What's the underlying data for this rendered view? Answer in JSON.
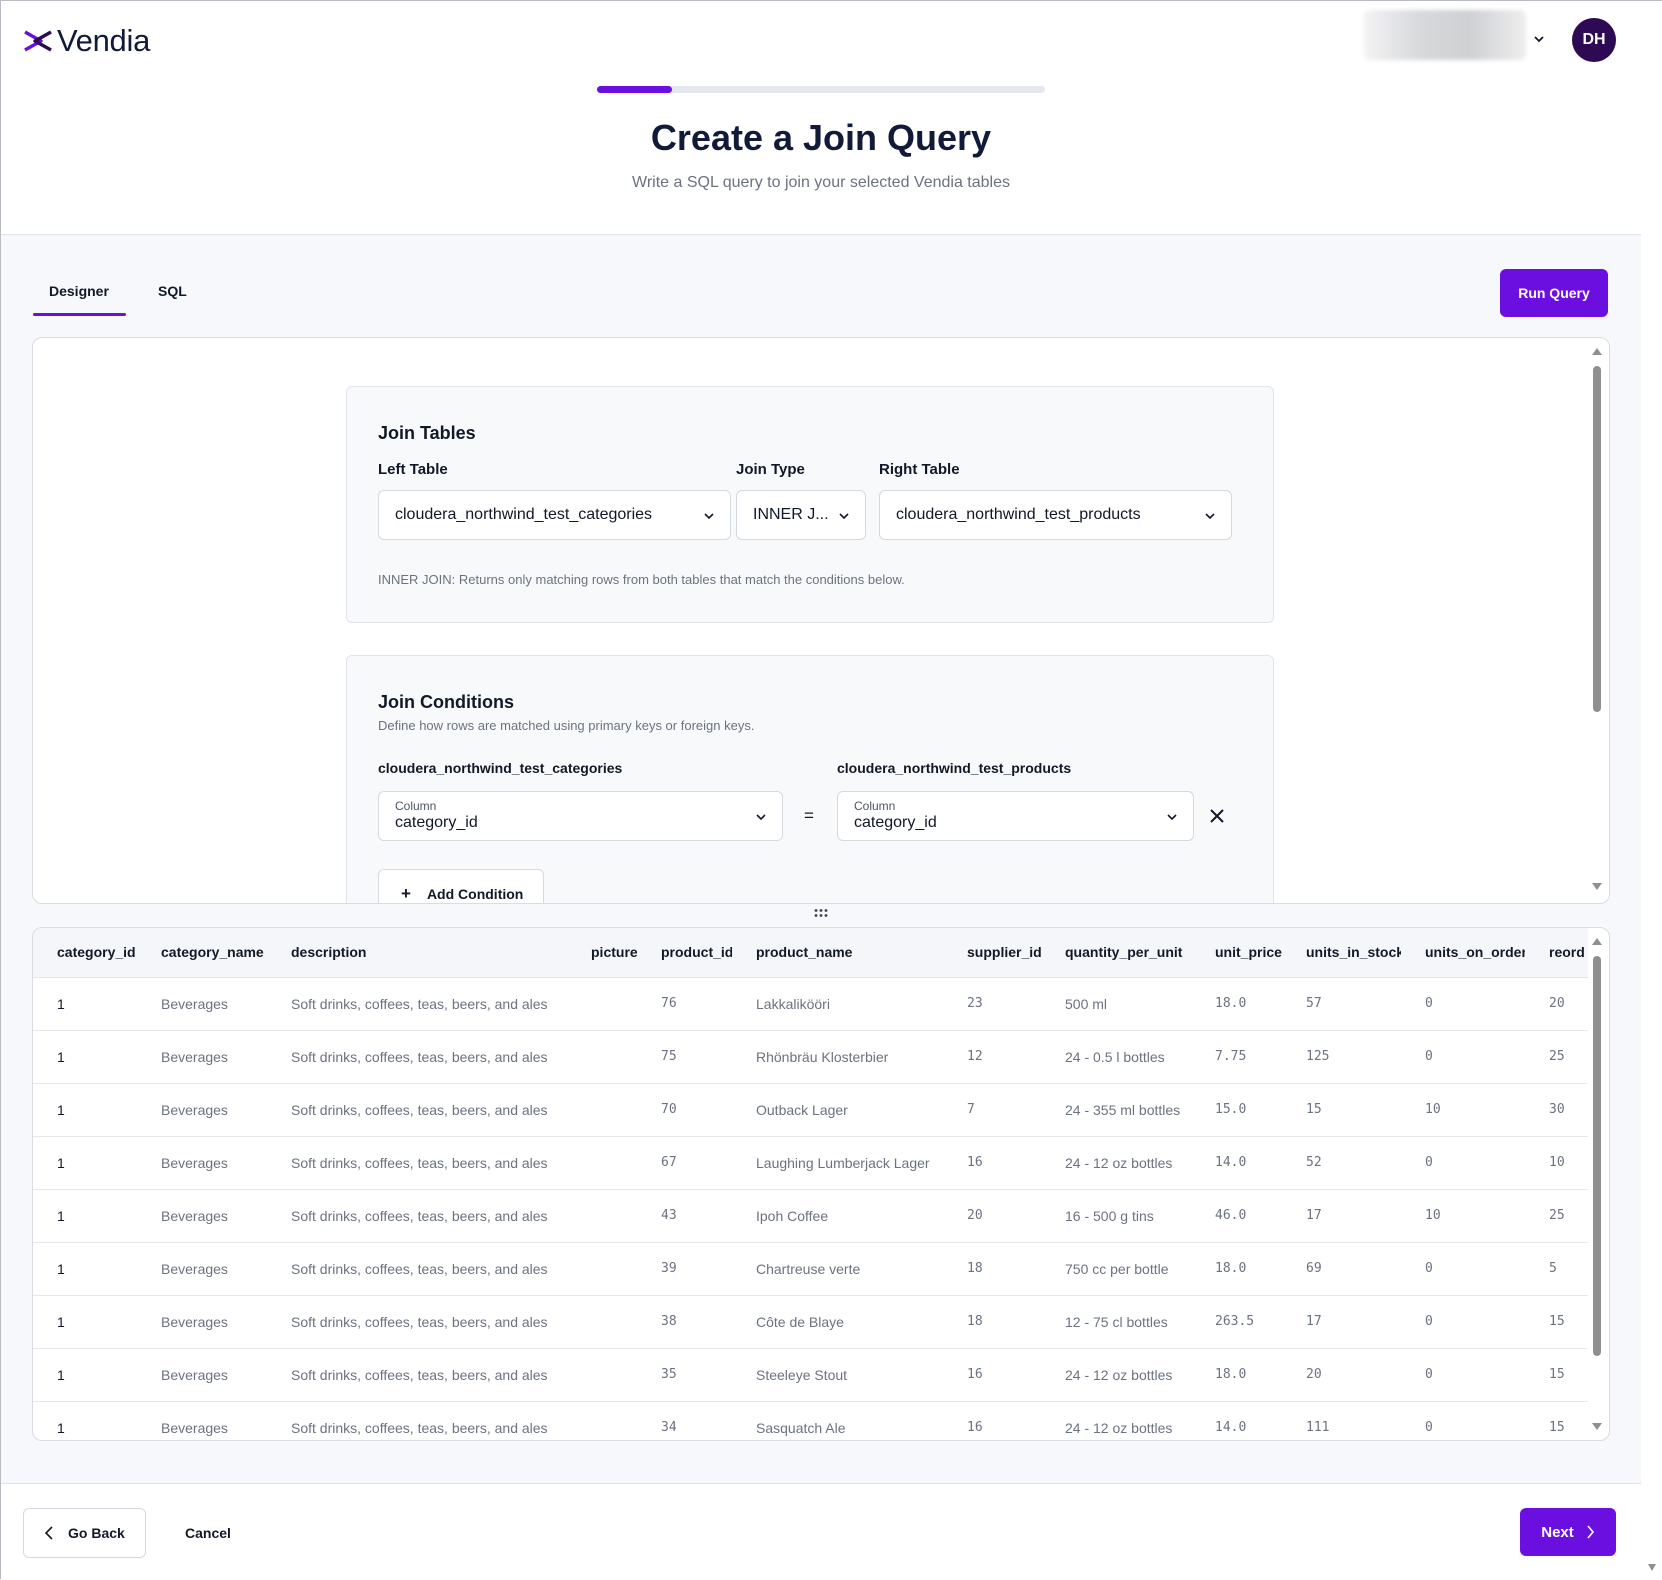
{
  "app": {
    "brand": "Vendia",
    "user_initials": "DH"
  },
  "progress": {
    "fraction": 0.167
  },
  "page": {
    "title": "Create a Join Query",
    "subtitle": "Write a SQL query to join your selected Vendia tables"
  },
  "tabs": [
    {
      "label": "Designer",
      "active": true
    },
    {
      "label": "SQL",
      "active": false
    }
  ],
  "toolbar": {
    "run_label": "Run Query"
  },
  "join_tables": {
    "title": "Join Tables",
    "left_label": "Left Table",
    "left_value": "cloudera_northwind_test_categories",
    "type_label": "Join Type",
    "type_value": "INNER J...",
    "right_label": "Right Table",
    "right_value": "cloudera_northwind_test_products",
    "hint": "INNER JOIN: Returns only matching rows from both tables that match the conditions below."
  },
  "join_conditions": {
    "title": "Join Conditions",
    "subtitle": "Define how rows are matched using primary keys or foreign keys.",
    "left_table": "cloudera_northwind_test_categories",
    "right_table": "cloudera_northwind_test_products",
    "left_field_label": "Column",
    "left_field_value": "category_id",
    "operator": "=",
    "right_field_label": "Column",
    "right_field_value": "category_id",
    "add_label": "Add Condition"
  },
  "results": {
    "columns": [
      "category_id",
      "category_name",
      "description",
      "picture",
      "product_id",
      "product_name",
      "supplier_id",
      "quantity_per_unit",
      "unit_price",
      "units_in_stock",
      "units_on_order",
      "reord"
    ],
    "rows": [
      [
        "1",
        "Beverages",
        "Soft drinks, coffees, teas, beers, and ales",
        "",
        "76",
        "Lakkalikööri",
        "23",
        "500 ml",
        "18.0",
        "57",
        "0",
        "20"
      ],
      [
        "1",
        "Beverages",
        "Soft drinks, coffees, teas, beers, and ales",
        "",
        "75",
        "Rhönbräu Klosterbier",
        "12",
        "24 - 0.5 l bottles",
        "7.75",
        "125",
        "0",
        "25"
      ],
      [
        "1",
        "Beverages",
        "Soft drinks, coffees, teas, beers, and ales",
        "",
        "70",
        "Outback Lager",
        "7",
        "24 - 355 ml bottles",
        "15.0",
        "15",
        "10",
        "30"
      ],
      [
        "1",
        "Beverages",
        "Soft drinks, coffees, teas, beers, and ales",
        "",
        "67",
        "Laughing Lumberjack Lager",
        "16",
        "24 - 12 oz bottles",
        "14.0",
        "52",
        "0",
        "10"
      ],
      [
        "1",
        "Beverages",
        "Soft drinks, coffees, teas, beers, and ales",
        "",
        "43",
        "Ipoh Coffee",
        "20",
        "16 - 500 g tins",
        "46.0",
        "17",
        "10",
        "25"
      ],
      [
        "1",
        "Beverages",
        "Soft drinks, coffees, teas, beers, and ales",
        "",
        "39",
        "Chartreuse verte",
        "18",
        "750 cc per bottle",
        "18.0",
        "69",
        "0",
        "5"
      ],
      [
        "1",
        "Beverages",
        "Soft drinks, coffees, teas, beers, and ales",
        "",
        "38",
        "Côte de Blaye",
        "18",
        "12 - 75 cl bottles",
        "263.5",
        "17",
        "0",
        "15"
      ],
      [
        "1",
        "Beverages",
        "Soft drinks, coffees, teas, beers, and ales",
        "",
        "35",
        "Steeleye Stout",
        "16",
        "24 - 12 oz bottles",
        "18.0",
        "20",
        "0",
        "15"
      ],
      [
        "1",
        "Beverages",
        "Soft drinks, coffees, teas, beers, and ales",
        "",
        "34",
        "Sasquatch Ale",
        "16",
        "24 - 12 oz bottles",
        "14.0",
        "111",
        "0",
        "15"
      ]
    ]
  },
  "footer": {
    "back_label": "Go Back",
    "cancel_label": "Cancel",
    "next_label": "Next"
  },
  "colors": {
    "accent": "#6b0fe0",
    "avatar": "#2e0a55",
    "brand_text": "#121a3a"
  },
  "icons": [
    "vendia-logo-icon",
    "chevron-down-icon",
    "close-icon",
    "plus-icon",
    "drag-handle-icon",
    "chevron-left-icon",
    "chevron-right-icon"
  ]
}
